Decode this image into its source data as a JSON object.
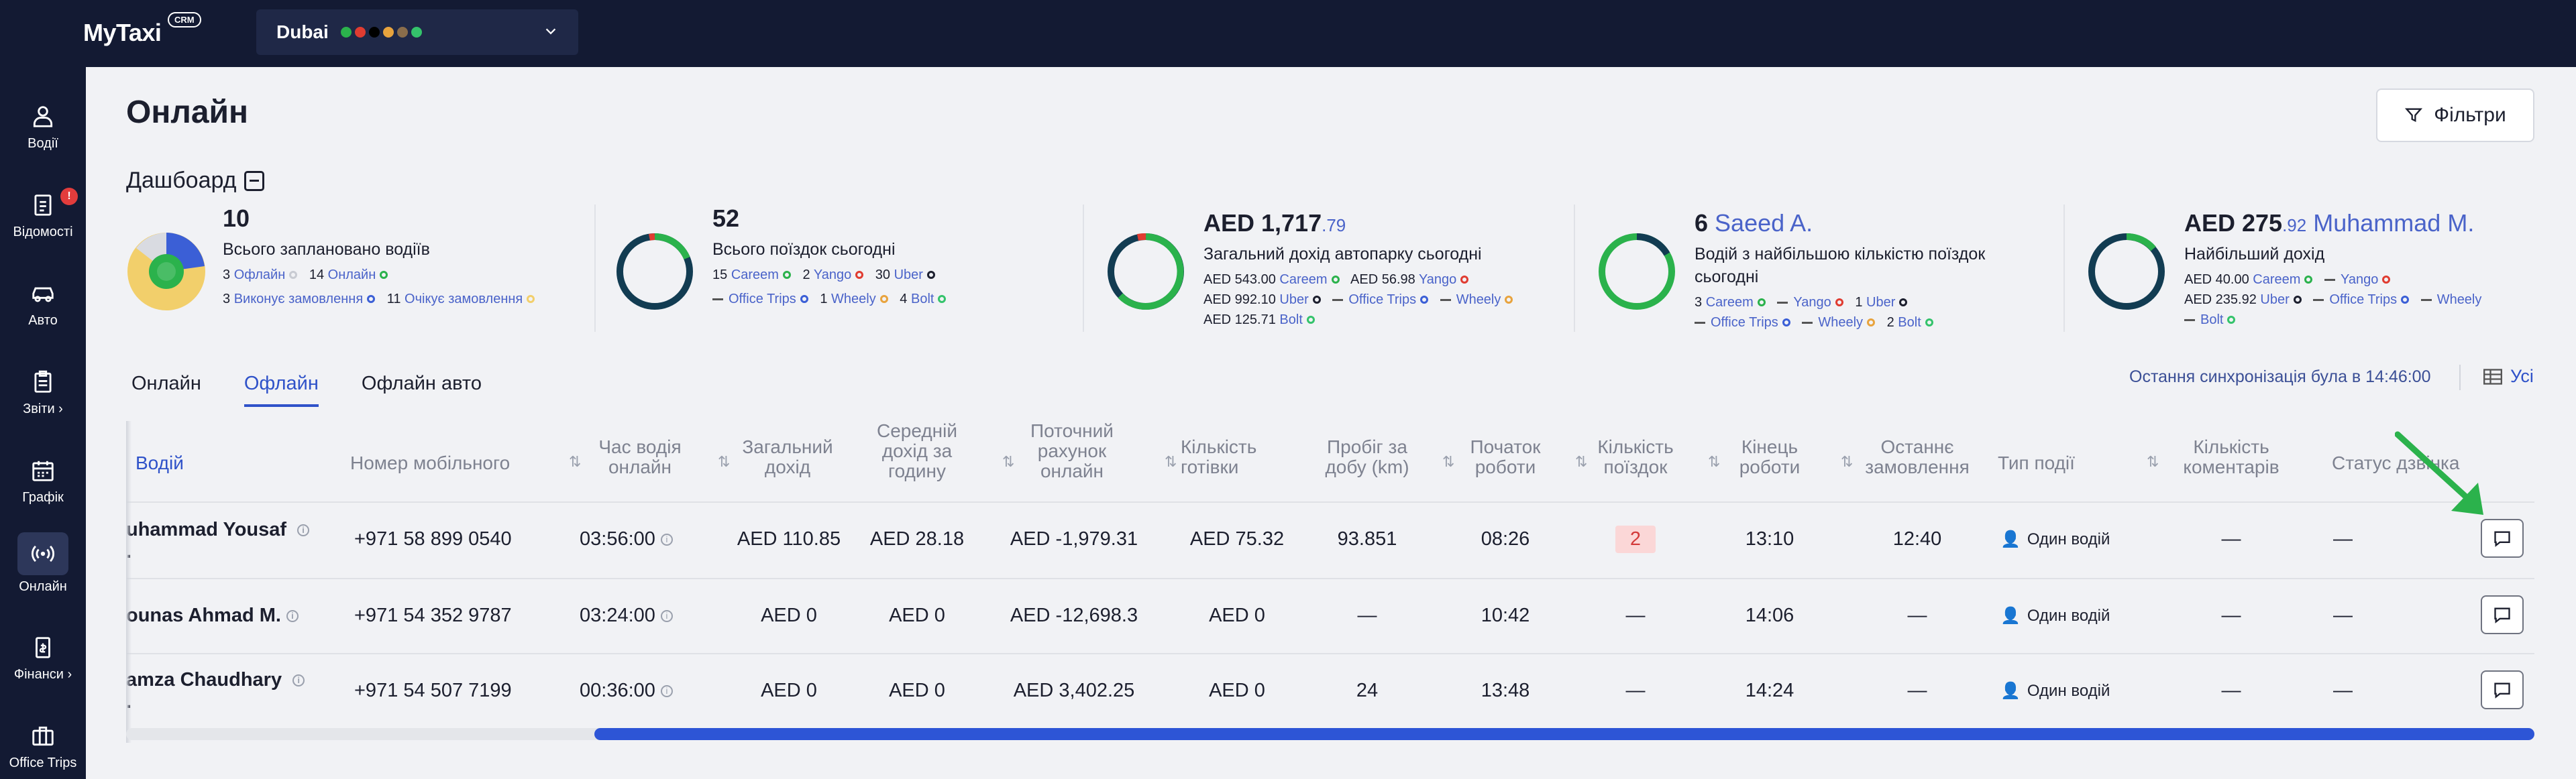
{
  "app": {
    "logo": "MyTaxi",
    "logo_badge": "CRM",
    "city": "Dubai"
  },
  "sidebar": {
    "items": [
      {
        "label": "Водії",
        "icon": "user-icon"
      },
      {
        "label": "Відомості",
        "icon": "report-icon",
        "badge": "!"
      },
      {
        "label": "Авто",
        "icon": "car-icon"
      },
      {
        "label": "Звіти ›",
        "icon": "clipboard-icon"
      },
      {
        "label": "Графік",
        "icon": "calendar-icon"
      },
      {
        "label": "Онлайн",
        "icon": "broadcast-icon",
        "active": true
      },
      {
        "label": "Фінанси ›",
        "icon": "wallet-icon"
      },
      {
        "label": "Office Trips",
        "icon": "briefcase-icon"
      }
    ]
  },
  "page": {
    "title": "Онлайн",
    "filter_label": "Фільтри",
    "dashboard_title": "Дашбоард"
  },
  "stats": {
    "planned": {
      "value": "10",
      "label": "Всього заплановано водіїв",
      "line1": {
        "a_num": "3",
        "a": "Офлайн",
        "b_num": "14",
        "b": "Онлайн"
      },
      "line2": {
        "a_num": "3",
        "a": "Виконує замовлення",
        "b_num": "11",
        "b": "Очікує замовлення"
      }
    },
    "trips": {
      "value": "52",
      "label": "Всього поїздок сьогодні",
      "line1": {
        "careem_num": "15",
        "careem": "Careem",
        "yango_num": "2",
        "yango": "Yango",
        "uber_num": "30",
        "uber": "Uber"
      },
      "line2": {
        "office": "Office Trips",
        "wheely_num": "1",
        "wheely": "Wheely",
        "bolt_num": "4",
        "bolt": "Bolt"
      }
    },
    "income": {
      "value": "AED 1,717",
      "sub": ".79",
      "label": "Загальний дохід автопарку сьогодні",
      "line1": {
        "careem_amt": "AED 543.00",
        "careem": "Careem",
        "yango_amt": "AED 56.98",
        "yango": "Yango"
      },
      "line2": {
        "uber_amt": "AED 992.10",
        "uber": "Uber",
        "office": "Office Trips",
        "wheely": "Wheely"
      },
      "line3": {
        "bolt_amt": "AED 125.71",
        "bolt": "Bolt"
      }
    },
    "top_trips": {
      "value": "6",
      "name": "Saeed A.",
      "label1": "Водій з найбільшою кількістю поїздок",
      "label2": "сьогодні",
      "line1": {
        "careem_num": "3",
        "careem": "Careem",
        "yango": "Yango",
        "uber_num": "1",
        "uber": "Uber"
      },
      "line2": {
        "office": "Office Trips",
        "wheely": "Wheely",
        "bolt_num": "2",
        "bolt": "Bolt"
      }
    },
    "top_income": {
      "value": "AED 275",
      "sub": ".92",
      "name": "Muhammad M.",
      "label": "Найбільший дохід",
      "line1": {
        "careem_amt": "AED 40.00",
        "careem": "Careem",
        "yango": "Yango"
      },
      "line2": {
        "uber_amt": "AED 235.92",
        "uber": "Uber",
        "office": "Office Trips",
        "wheely": "Wheely"
      },
      "line3": {
        "bolt": "Bolt"
      }
    }
  },
  "tabs": [
    "Онлайн",
    "Офлайн",
    "Офлайн авто"
  ],
  "sync_text": "Остання синхронізація була в 14:46:00",
  "all_label": "Усі",
  "table": {
    "headers": [
      [
        "Водій"
      ],
      [
        "Номер мобільного"
      ],
      [
        "Час водія",
        "онлайн"
      ],
      [
        "Загальний",
        "дохід"
      ],
      [
        "Середній",
        "дохід за",
        "годину"
      ],
      [
        "Поточний",
        "рахунок",
        "онлайн"
      ],
      [
        "Кількість",
        "готівки"
      ],
      [
        "Пробіг за",
        "добу (km)"
      ],
      [
        "Початок",
        "роботи"
      ],
      [
        "Кількість",
        "поїздок"
      ],
      [
        "Кінець",
        "роботи"
      ],
      [
        "Останнє",
        "замовлення"
      ],
      [
        "Тип події"
      ],
      [
        "Кількість",
        "коментарів"
      ],
      [
        "Статус дзвінка"
      ]
    ],
    "rows": [
      {
        "driver": "uhammad Yousaf",
        "driver2": ".",
        "phone": "+971 58 899 0540",
        "online": "03:56:00",
        "income": "AED 110.85",
        "hourly": "AED 28.18",
        "account": "AED -1,979.31",
        "cash": "AED 75.32",
        "mileage": "93.851",
        "start": "08:26",
        "trips": "2",
        "end": "13:10",
        "last": "12:40",
        "event": "Один водій",
        "comments": "—",
        "call": "—"
      },
      {
        "driver": "ounas Ahmad M.",
        "driver2": "",
        "phone": "+971 54 352 9787",
        "online": "03:24:00",
        "income": "AED 0",
        "hourly": "AED 0",
        "account": "AED -12,698.3",
        "cash": "AED 0",
        "mileage": "—",
        "start": "10:42",
        "trips": "—",
        "end": "14:06",
        "last": "—",
        "event": "Один водій",
        "comments": "—",
        "call": "—"
      },
      {
        "driver": "amza Chaudhary",
        "driver2": ".",
        "phone": "+971 54 507 7199",
        "online": "00:36:00",
        "income": "AED 0",
        "hourly": "AED 0",
        "account": "AED 3,402.25",
        "cash": "AED 0",
        "mileage": "24",
        "start": "13:48",
        "trips": "—",
        "end": "14:24",
        "last": "—",
        "event": "Один водій",
        "comments": "—",
        "call": "—"
      }
    ]
  },
  "colors": {
    "careem": "#2bb24c",
    "yango": "#e03c31",
    "uber": "#1c1f2e",
    "office": "#3b5fd6",
    "wheely": "#e8a33d",
    "bolt": "#34c36b",
    "accent": "#2f52c9",
    "sidebar_bg": "#131a33"
  }
}
